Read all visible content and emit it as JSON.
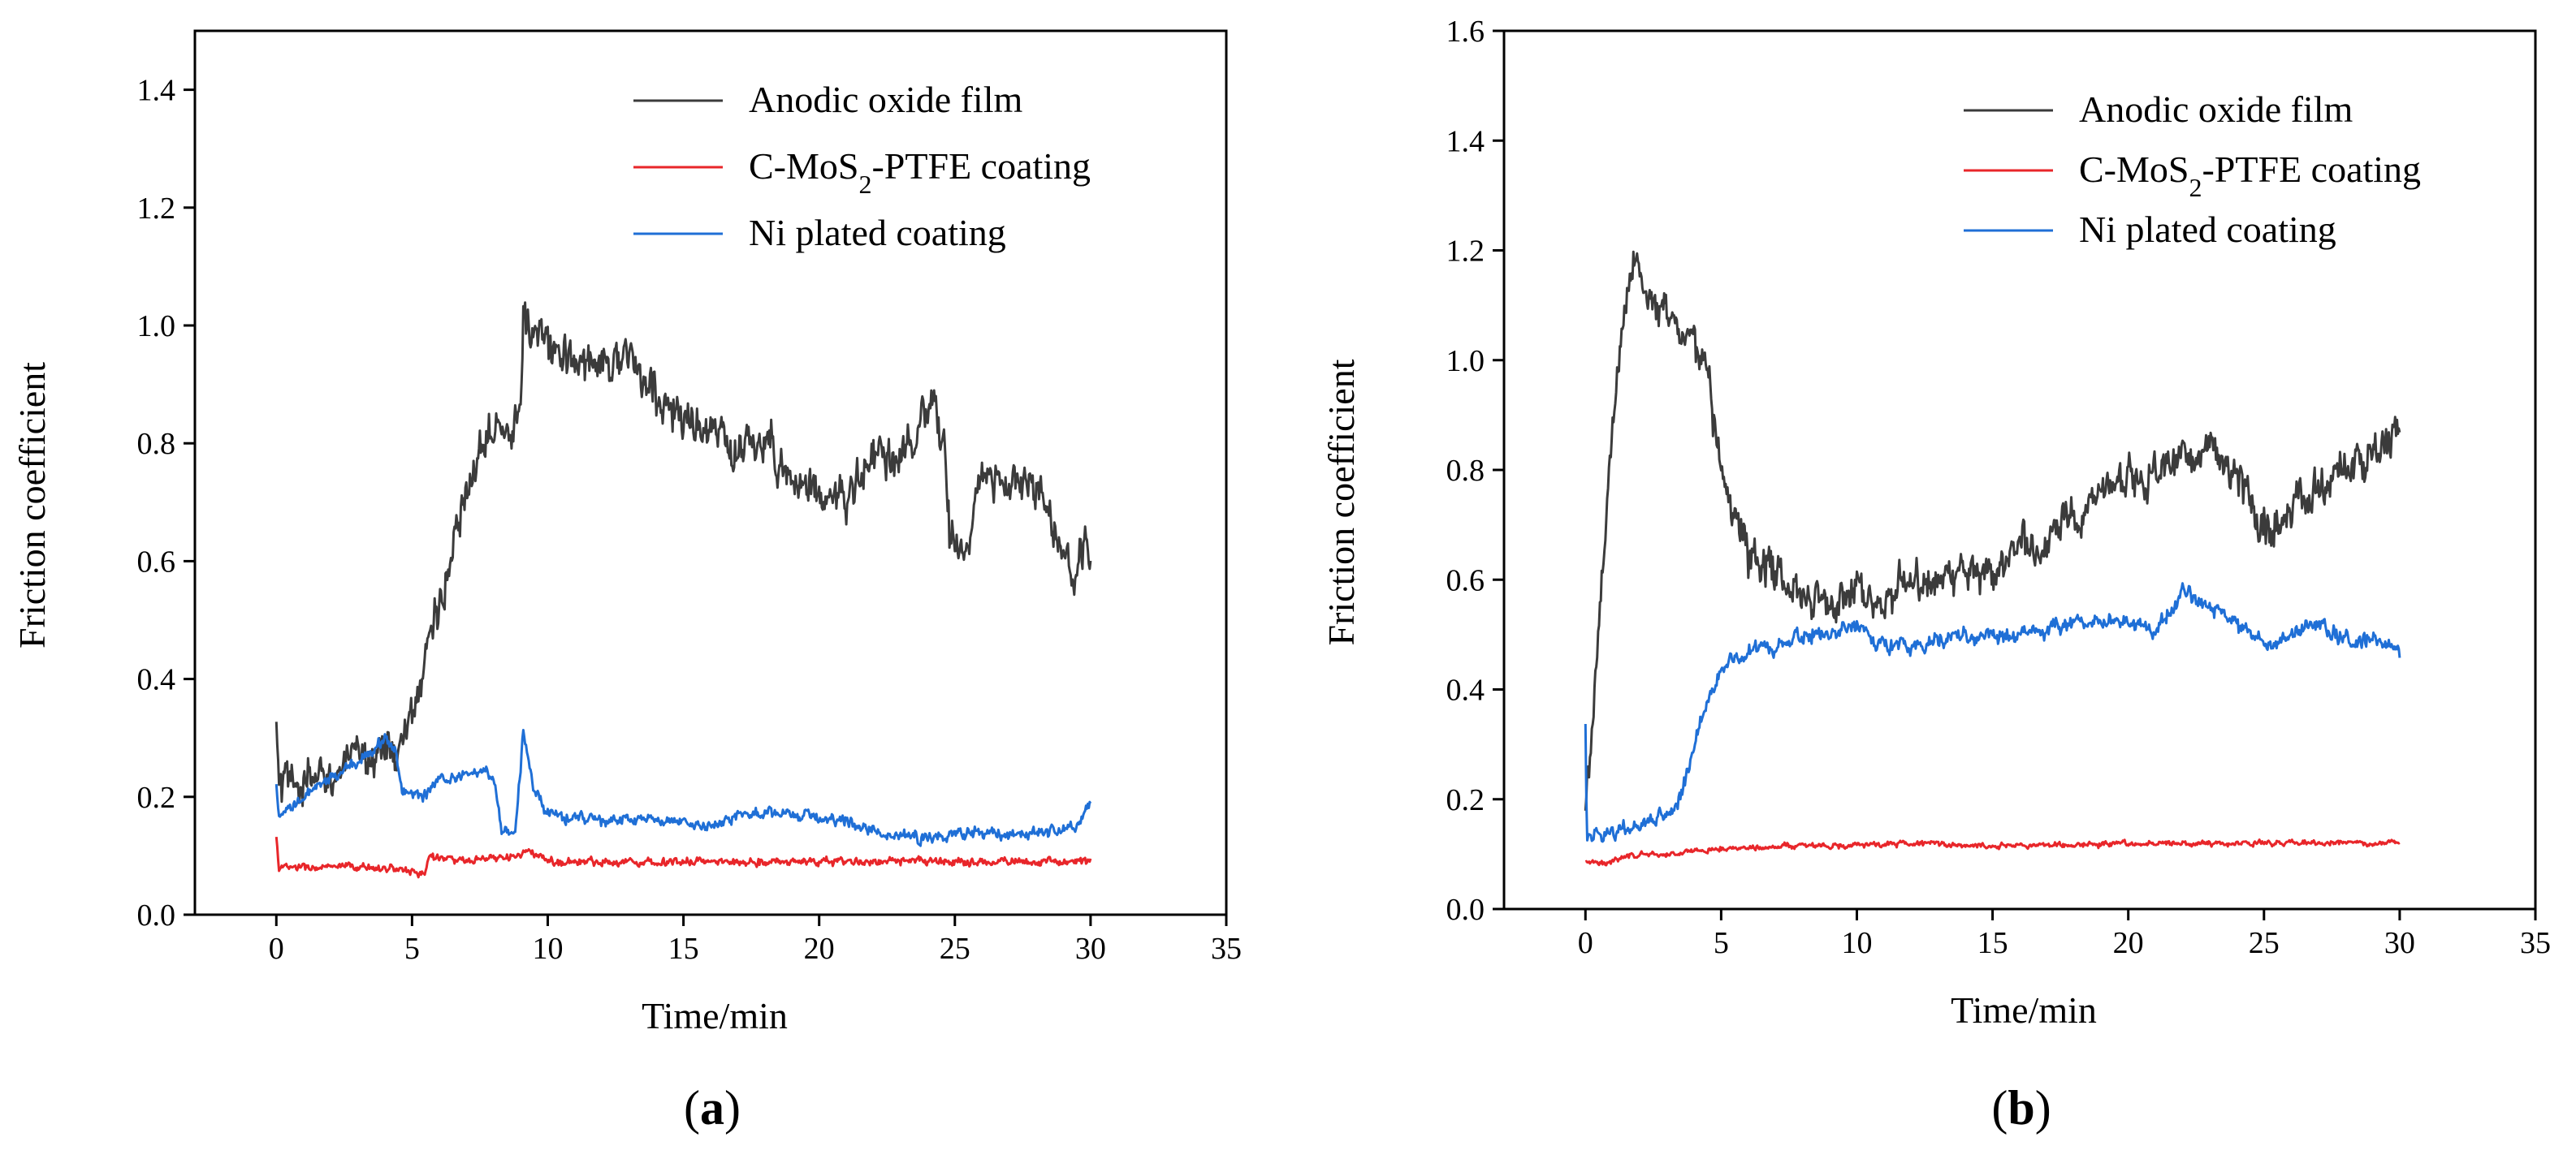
{
  "colors": {
    "anodic": "#3b3b3b",
    "cmos2": "#e8262a",
    "ni": "#1f6fd6",
    "axis": "#000000"
  },
  "chart_data": [
    {
      "type": "line",
      "panel_label": "a",
      "xlabel": "Time/min",
      "ylabel": "Friction coefficient",
      "xlim": [
        -3,
        35
      ],
      "ylim": [
        0,
        1.5
      ],
      "xticks": [
        0,
        5,
        10,
        15,
        20,
        25,
        30,
        35
      ],
      "yticks": [
        0.0,
        0.2,
        0.4,
        0.6,
        0.8,
        1.0,
        1.2,
        1.4
      ],
      "legend_position": "top-right",
      "series": [
        {
          "name": "Anodic oxide film",
          "color_key": "anodic",
          "legend_html": "Anodic oxide film",
          "noise": 0.045,
          "points": [
            [
              0,
              0.31
            ],
            [
              0.08,
              0.22
            ],
            [
              1,
              0.22
            ],
            [
              2,
              0.24
            ],
            [
              3,
              0.26
            ],
            [
              4,
              0.29
            ],
            [
              4.5,
              0.27
            ],
            [
              5,
              0.33
            ],
            [
              5.5,
              0.45
            ],
            [
              6,
              0.53
            ],
            [
              7,
              0.7
            ],
            [
              7.5,
              0.8
            ],
            [
              8,
              0.85
            ],
            [
              8.5,
              0.83
            ],
            [
              9,
              0.85
            ],
            [
              9.1,
              1.0
            ],
            [
              10,
              0.97
            ],
            [
              11,
              0.93
            ],
            [
              12,
              0.95
            ],
            [
              13,
              0.94
            ],
            [
              14,
              0.88
            ],
            [
              15,
              0.84
            ],
            [
              16,
              0.82
            ],
            [
              17,
              0.78
            ],
            [
              18,
              0.81
            ],
            [
              19,
              0.74
            ],
            [
              20,
              0.72
            ],
            [
              21,
              0.7
            ],
            [
              22,
              0.78
            ],
            [
              23,
              0.77
            ],
            [
              24,
              0.84
            ],
            [
              24.6,
              0.82
            ],
            [
              24.8,
              0.65
            ],
            [
              25.5,
              0.63
            ],
            [
              26,
              0.75
            ],
            [
              27,
              0.72
            ],
            [
              28,
              0.73
            ],
            [
              29,
              0.61
            ],
            [
              29.5,
              0.57
            ],
            [
              30,
              0.64
            ]
          ]
        },
        {
          "name": "C-MoS2-PTFE coating",
          "color_key": "cmos2",
          "legend_html": "C-MoS<tspan baseline-shift=\"sub\" font-size=\"32\">2</tspan>-PTFE coating",
          "noise": 0.008,
          "points": [
            [
              0,
              0.13
            ],
            [
              0.1,
              0.08
            ],
            [
              2,
              0.08
            ],
            [
              4,
              0.08
            ],
            [
              5.5,
              0.07
            ],
            [
              5.6,
              0.1
            ],
            [
              7,
              0.09
            ],
            [
              9,
              0.1
            ],
            [
              9.2,
              0.11
            ],
            [
              10,
              0.09
            ],
            [
              15,
              0.09
            ],
            [
              20,
              0.09
            ],
            [
              25,
              0.09
            ],
            [
              30,
              0.09
            ]
          ]
        },
        {
          "name": "Ni plated coating",
          "color_key": "ni",
          "legend_html": "Ni plated coating",
          "noise": 0.012,
          "points": [
            [
              0,
              0.22
            ],
            [
              0.08,
              0.16
            ],
            [
              1,
              0.2
            ],
            [
              2,
              0.23
            ],
            [
              3,
              0.26
            ],
            [
              4,
              0.3
            ],
            [
              4.4,
              0.28
            ],
            [
              4.6,
              0.21
            ],
            [
              5,
              0.21
            ],
            [
              5.5,
              0.2
            ],
            [
              6,
              0.23
            ],
            [
              7,
              0.24
            ],
            [
              8,
              0.24
            ],
            [
              8.3,
              0.14
            ],
            [
              8.8,
              0.14
            ],
            [
              9.1,
              0.31
            ],
            [
              9.5,
              0.21
            ],
            [
              10,
              0.17
            ],
            [
              12,
              0.16
            ],
            [
              14,
              0.16
            ],
            [
              16,
              0.15
            ],
            [
              17,
              0.17
            ],
            [
              19,
              0.17
            ],
            [
              21,
              0.16
            ],
            [
              22,
              0.14
            ],
            [
              24,
              0.13
            ],
            [
              26,
              0.14
            ],
            [
              28,
              0.14
            ],
            [
              29.5,
              0.15
            ],
            [
              30,
              0.19
            ]
          ]
        }
      ]
    },
    {
      "type": "line",
      "panel_label": "b",
      "xlabel": "Time/min",
      "ylabel": "Friction coefficient",
      "xlim": [
        -3,
        35
      ],
      "ylim": [
        0,
        1.6
      ],
      "xticks": [
        0,
        5,
        10,
        15,
        20,
        25,
        30,
        35
      ],
      "yticks": [
        0.0,
        0.2,
        0.4,
        0.6,
        0.8,
        1.0,
        1.2,
        1.4,
        1.6
      ],
      "legend_position": "top-right",
      "series": [
        {
          "name": "Anodic oxide film",
          "color_key": "anodic",
          "legend_html": "Anodic oxide film",
          "noise": 0.045,
          "points": [
            [
              0,
              0.2
            ],
            [
              0.3,
              0.35
            ],
            [
              0.8,
              0.75
            ],
            [
              1.2,
              1.0
            ],
            [
              1.6,
              1.15
            ],
            [
              2,
              1.18
            ],
            [
              2.5,
              1.1
            ],
            [
              3,
              1.08
            ],
            [
              4,
              1.03
            ],
            [
              4.5,
              1.0
            ],
            [
              4.9,
              0.82
            ],
            [
              5.5,
              0.7
            ],
            [
              6,
              0.65
            ],
            [
              7,
              0.62
            ],
            [
              8,
              0.58
            ],
            [
              9,
              0.56
            ],
            [
              10,
              0.58
            ],
            [
              11,
              0.57
            ],
            [
              12,
              0.6
            ],
            [
              13,
              0.59
            ],
            [
              14,
              0.62
            ],
            [
              15,
              0.62
            ],
            [
              16,
              0.66
            ],
            [
              17,
              0.68
            ],
            [
              18,
              0.72
            ],
            [
              19,
              0.76
            ],
            [
              20,
              0.78
            ],
            [
              21,
              0.8
            ],
            [
              22,
              0.82
            ],
            [
              23,
              0.84
            ],
            [
              24,
              0.8
            ],
            [
              25,
              0.7
            ],
            [
              26,
              0.72
            ],
            [
              27,
              0.76
            ],
            [
              28,
              0.8
            ],
            [
              29,
              0.84
            ],
            [
              30,
              0.88
            ]
          ]
        },
        {
          "name": "C-MoS2-PTFE coating",
          "color_key": "cmos2",
          "legend_html": "C-MoS<tspan baseline-shift=\"sub\" font-size=\"32\">2</tspan>-PTFE coating",
          "noise": 0.006,
          "points": [
            [
              0,
              0.09
            ],
            [
              0.5,
              0.08
            ],
            [
              1,
              0.09
            ],
            [
              2,
              0.1
            ],
            [
              3,
              0.1
            ],
            [
              5,
              0.11
            ],
            [
              7,
              0.115
            ],
            [
              10,
              0.115
            ],
            [
              12,
              0.12
            ],
            [
              15,
              0.115
            ],
            [
              20,
              0.12
            ],
            [
              25,
              0.12
            ],
            [
              30,
              0.12
            ]
          ]
        },
        {
          "name": "Ni plated coating",
          "color_key": "ni",
          "legend_html": "Ni plated coating",
          "noise": 0.018,
          "points": [
            [
              0,
              0.35
            ],
            [
              0.05,
              0.13
            ],
            [
              1,
              0.14
            ],
            [
              2,
              0.15
            ],
            [
              3,
              0.17
            ],
            [
              3.5,
              0.2
            ],
            [
              4,
              0.3
            ],
            [
              4.5,
              0.38
            ],
            [
              5,
              0.44
            ],
            [
              6,
              0.47
            ],
            [
              7,
              0.48
            ],
            [
              8,
              0.5
            ],
            [
              9,
              0.5
            ],
            [
              10,
              0.52
            ],
            [
              11,
              0.48
            ],
            [
              12,
              0.48
            ],
            [
              14,
              0.5
            ],
            [
              16,
              0.5
            ],
            [
              18,
              0.52
            ],
            [
              20,
              0.52
            ],
            [
              21,
              0.51
            ],
            [
              22,
              0.58
            ],
            [
              23,
              0.55
            ],
            [
              24,
              0.52
            ],
            [
              25,
              0.48
            ],
            [
              26,
              0.5
            ],
            [
              27,
              0.52
            ],
            [
              28,
              0.49
            ],
            [
              29,
              0.49
            ],
            [
              30,
              0.47
            ]
          ]
        }
      ]
    }
  ]
}
